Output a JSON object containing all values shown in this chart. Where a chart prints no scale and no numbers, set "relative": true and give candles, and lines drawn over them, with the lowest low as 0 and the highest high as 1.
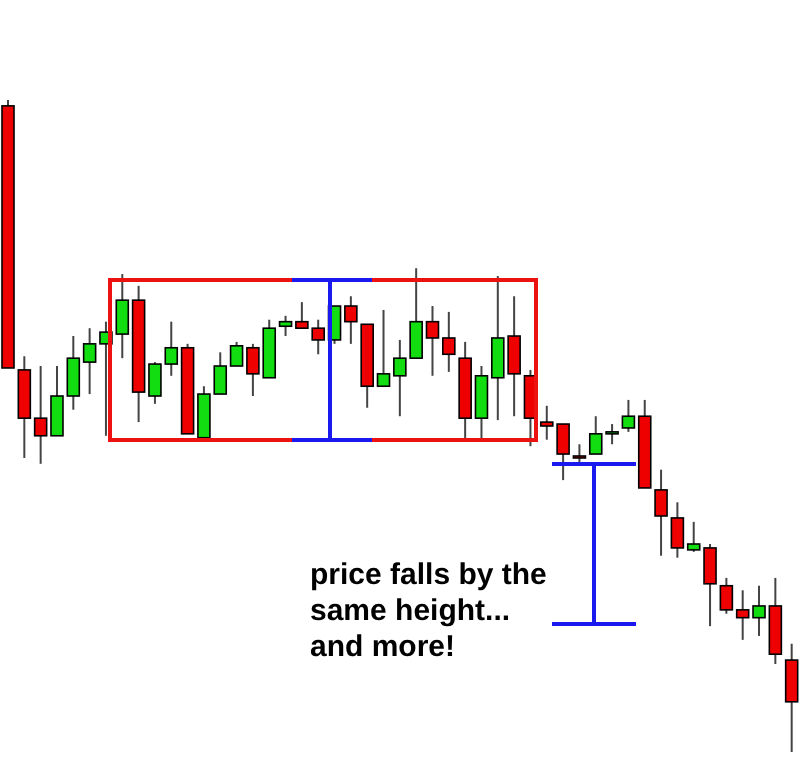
{
  "chart_data": {
    "type": "candlestick",
    "relative": true,
    "categories": [
      null,
      null,
      null,
      null,
      null,
      null,
      null,
      null,
      null,
      null,
      null,
      null,
      null,
      null,
      null,
      null,
      null,
      null,
      null,
      null,
      null,
      null,
      null,
      null,
      null,
      null,
      null,
      null,
      null,
      null,
      null,
      null,
      null,
      null,
      null,
      null,
      null,
      null,
      null,
      null,
      null,
      null,
      null,
      null,
      null,
      null,
      null,
      null,
      null
    ],
    "ohlc": [
      [
        0.991,
        1,
        0.589,
        0.589
      ],
      [
        0.586,
        0.607,
        0.451,
        0.512
      ],
      [
        0.512,
        0.592,
        0.442,
        0.485
      ],
      [
        0.485,
        0.592,
        0.485,
        0.546
      ],
      [
        0.546,
        0.638,
        0.525,
        0.604
      ],
      [
        0.598,
        0.65,
        0.549,
        0.626
      ],
      [
        0.626,
        0.66,
        0.485,
        0.644
      ],
      [
        0.641,
        0.733,
        0.604,
        0.693
      ],
      [
        0.693,
        0.715,
        0.506,
        0.552
      ],
      [
        0.546,
        0.598,
        0.534,
        0.595
      ],
      [
        0.595,
        0.66,
        0.577,
        0.62
      ],
      [
        0.62,
        0.626,
        0.488,
        0.488
      ],
      [
        0.482,
        0.561,
        0.482,
        0.549
      ],
      [
        0.549,
        0.613,
        0.549,
        0.592
      ],
      [
        0.592,
        0.629,
        0.592,
        0.623
      ],
      [
        0.62,
        0.626,
        0.546,
        0.58
      ],
      [
        0.574,
        0.663,
        0.574,
        0.65
      ],
      [
        0.653,
        0.669,
        0.638,
        0.66
      ],
      [
        0.66,
        0.69,
        0.65,
        0.65
      ],
      [
        0.65,
        0.663,
        0.61,
        0.632
      ],
      [
        0.632,
        0.684,
        0.626,
        0.684
      ],
      [
        0.684,
        0.699,
        0.626,
        0.66
      ],
      [
        0.656,
        0.656,
        0.528,
        0.561
      ],
      [
        0.561,
        0.678,
        0.561,
        0.58
      ],
      [
        0.577,
        0.632,
        0.515,
        0.604
      ],
      [
        0.604,
        0.742,
        0.604,
        0.66
      ],
      [
        0.66,
        0.684,
        0.577,
        0.635
      ],
      [
        0.635,
        0.675,
        0.583,
        0.61
      ],
      [
        0.604,
        0.629,
        0.479,
        0.512
      ],
      [
        0.512,
        0.592,
        0.479,
        0.577
      ],
      [
        0.574,
        0.73,
        0.509,
        0.635
      ],
      [
        0.638,
        0.699,
        0.515,
        0.58
      ],
      [
        0.577,
        0.586,
        0.469,
        0.512
      ],
      [
        0.506,
        0.531,
        0.479,
        0.5
      ],
      [
        0.503,
        0.503,
        0.417,
        0.457
      ],
      [
        0.454,
        0.472,
        0.439,
        0.454
      ],
      [
        0.457,
        0.515,
        0.457,
        0.488
      ],
      [
        0.491,
        0.503,
        0.472,
        0.491
      ],
      [
        0.497,
        0.54,
        0.491,
        0.515
      ],
      [
        0.515,
        0.54,
        0.405,
        0.405
      ],
      [
        0.402,
        0.433,
        0.301,
        0.362
      ],
      [
        0.359,
        0.383,
        0.298,
        0.313
      ],
      [
        0.31,
        0.353,
        0.307,
        0.319
      ],
      [
        0.313,
        0.319,
        0.193,
        0.258
      ],
      [
        0.255,
        0.267,
        0.212,
        0.218
      ],
      [
        0.218,
        0.248,
        0.172,
        0.206
      ],
      [
        0.206,
        0.255,
        0.178,
        0.224
      ],
      [
        0.224,
        0.267,
        0.135,
        0.15
      ],
      [
        0.141,
        0.166,
        0,
        0.077
      ]
    ],
    "colors": [
      "#ee0000",
      "#ee0000",
      "#ee0000",
      "#11dd11",
      "#11dd11",
      "#11dd11",
      "#11dd11",
      "#11dd11",
      "#ee0000",
      "#11dd11",
      "#11dd11",
      "#ee0000",
      "#11dd11",
      "#11dd11",
      "#11dd11",
      "#ee0000",
      "#11dd11",
      "#11dd11",
      "#ee0000",
      "#ee0000",
      "#11dd11",
      "#ee0000",
      "#ee0000",
      "#11dd11",
      "#11dd11",
      "#11dd11",
      "#ee0000",
      "#ee0000",
      "#ee0000",
      "#11dd11",
      "#11dd11",
      "#ee0000",
      "#ee0000",
      "#ee0000",
      "#ee0000",
      "#ee0000",
      "#11dd11",
      "#11dd11",
      "#11dd11",
      "#ee0000",
      "#ee0000",
      "#ee0000",
      "#11dd11",
      "#ee0000",
      "#ee0000",
      "#ee0000",
      "#11dd11",
      "#ee0000",
      "#ee0000"
    ],
    "annotations": [
      "price falls by the same height... and more!"
    ]
  }
}
